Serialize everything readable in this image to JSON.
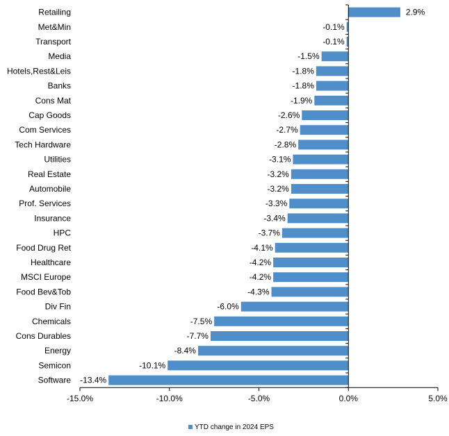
{
  "colors": {
    "bar": "#4f8ec9",
    "axis": "#000000",
    "text": "#000000"
  },
  "chart_data": {
    "type": "bar",
    "orientation": "horizontal",
    "categories": [
      "Retailing",
      "Met&Min",
      "Transport",
      "Media",
      "Hotels,Rest&Leis",
      "Banks",
      "Cons Mat",
      "Cap Goods",
      "Com Services",
      "Tech Hardware",
      "Utilities",
      "Real Estate",
      "Automobile",
      "Prof. Services",
      "Insurance",
      "HPC",
      "Food Drug Ret",
      "Healthcare",
      "MSCI Europe",
      "Food Bev&Tob",
      "Div Fin",
      "Chemicals",
      "Cons Durables",
      "Energy",
      "Semicon",
      "Software"
    ],
    "series": [
      {
        "name": "YTD change in 2024 EPS",
        "values": [
          2.9,
          -0.1,
          -0.1,
          -1.5,
          -1.8,
          -1.8,
          -1.9,
          -2.6,
          -2.7,
          -2.8,
          -3.1,
          -3.2,
          -3.2,
          -3.3,
          -3.4,
          -3.7,
          -4.1,
          -4.2,
          -4.2,
          -4.3,
          -6.0,
          -7.5,
          -7.7,
          -8.4,
          -10.1,
          -13.4
        ],
        "labels": [
          "2.9%",
          "-0.1%",
          "-0.1%",
          "-1.5%",
          "-1.8%",
          "-1.8%",
          "-1.9%",
          "-2.6%",
          "-2.7%",
          "-2.8%",
          "-3.1%",
          "-3.2%",
          "-3.2%",
          "-3.3%",
          "-3.4%",
          "-3.7%",
          "-4.1%",
          "-4.2%",
          "-4.2%",
          "-4.3%",
          "-6.0%",
          "-7.5%",
          "-7.7%",
          "-8.4%",
          "-10.1%",
          "-13.4%"
        ]
      }
    ],
    "xlim": [
      -15,
      5
    ],
    "xticks": [
      -15,
      -10,
      -5,
      0,
      5
    ],
    "xtick_labels": [
      "-15.0%",
      "-10.0%",
      "-5.0%",
      "0.0%",
      "5.0%"
    ],
    "grid": false,
    "legend_position": "bottom-center"
  }
}
